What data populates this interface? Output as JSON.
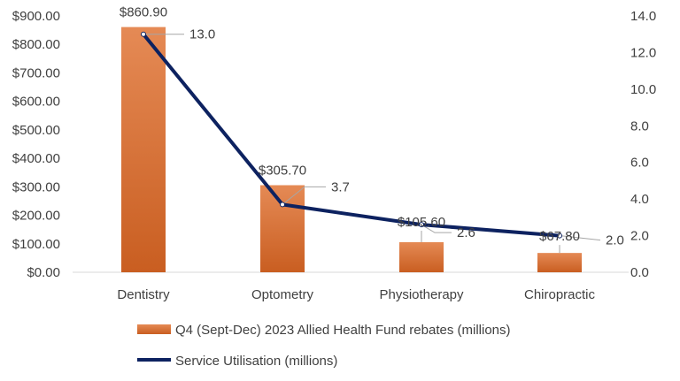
{
  "chart_data": {
    "type": "bar",
    "categories": [
      "Dentistry",
      "Optometry",
      "Physiotherapy",
      "Chiropractic"
    ],
    "series": [
      {
        "name": "Q4 (Sept-Dec) 2023 Allied Health Fund rebates (millions)",
        "chart": "bar",
        "axis": "left",
        "values": [
          860.9,
          305.7,
          105.6,
          67.8
        ],
        "labels": [
          "$860.90",
          "$305.70",
          "$105.60",
          "$67.80"
        ],
        "color": "#E07A3C"
      },
      {
        "name": "Service Utilisation (millions)",
        "chart": "line",
        "axis": "right",
        "values": [
          13.0,
          3.7,
          2.6,
          2.0
        ],
        "labels": [
          "13.0",
          "3.7",
          "2.6",
          "2.0"
        ],
        "color": "#0D2260"
      }
    ],
    "y_left": {
      "range": [
        0,
        900
      ],
      "ticks": [
        "$0.00",
        "$100.00",
        "$200.00",
        "$300.00",
        "$400.00",
        "$500.00",
        "$600.00",
        "$700.00",
        "$800.00",
        "$900.00"
      ]
    },
    "y_right": {
      "range": [
        0,
        14
      ],
      "ticks": [
        "0.0",
        "2.0",
        "4.0",
        "6.0",
        "8.0",
        "10.0",
        "12.0",
        "14.0"
      ]
    },
    "legend_position": "bottom",
    "grid": false
  }
}
